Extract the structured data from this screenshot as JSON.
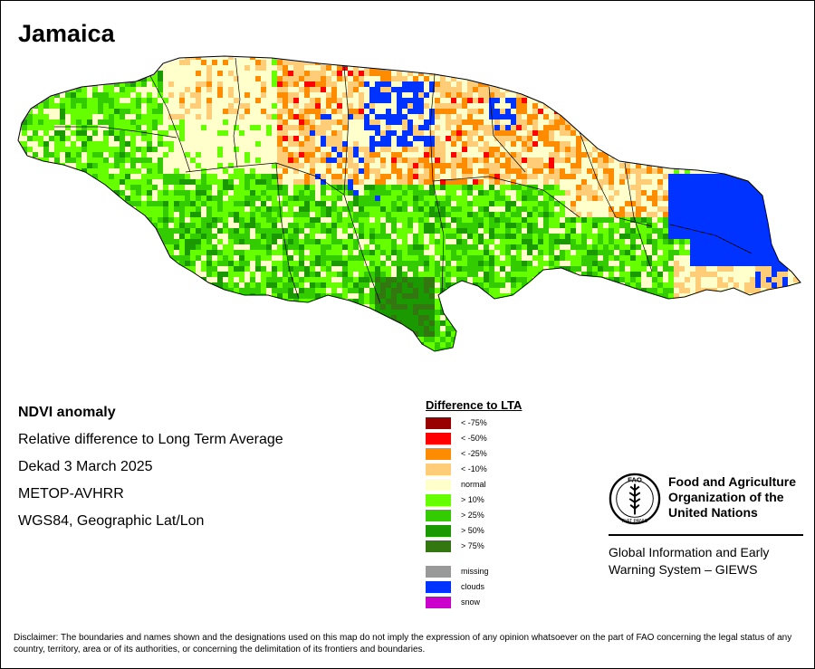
{
  "title": "Jamaica",
  "info_lines": [
    "NDVI anomaly",
    "Relative difference to Long Term Average",
    "Dekad 3 March 2025",
    "METOP-AVHRR",
    "WGS84, Geographic Lat/Lon"
  ],
  "legend": {
    "title": "Difference to LTA",
    "items": [
      {
        "label": "< -75%",
        "color": "#990000"
      },
      {
        "label": "< -50%",
        "color": "#ff0000"
      },
      {
        "label": "< -25%",
        "color": "#ff8c00"
      },
      {
        "label": "< -10%",
        "color": "#ffcc77"
      },
      {
        "label": "normal",
        "color": "#ffffcc"
      },
      {
        "label": "> 10%",
        "color": "#66ff00"
      },
      {
        "label": "> 25%",
        "color": "#33cc00"
      },
      {
        "label": "> 50%",
        "color": "#1a9900"
      },
      {
        "label": "> 75%",
        "color": "#337711"
      }
    ],
    "extra_items": [
      {
        "label": "missing",
        "color": "#999999"
      },
      {
        "label": "clouds",
        "color": "#0033ff"
      },
      {
        "label": "snow",
        "color": "#cc00cc"
      }
    ]
  },
  "organization": {
    "logo_letters": "FAO",
    "logo_motto": "FIAT PANIS",
    "name_lines": [
      "Food and Agriculture",
      "Organization of the",
      "United Nations"
    ],
    "giews_lines": [
      "Global Information and Early",
      "Warning System – GIEWS"
    ]
  },
  "disclaimer": "Disclaimer: The boundaries and names shown and the designations used on this map do not imply the expression of any opinion whatsoever on the part of FAO concerning the legal status of any country, territory, area or of its authorities, or concerning the delimitation of its frontiers and boundaries.",
  "map": {
    "island_fill": "#ffffcc",
    "outline_color": "#000000",
    "region_colors": {
      "dry": "#ffcc77",
      "drier": "#ff8c00",
      "driest": "#ff0000",
      "green": "#66ff00",
      "greener": "#33cc00",
      "greenest": "#1a9900",
      "darkest": "#337711",
      "clouds": "#0033ff"
    }
  }
}
